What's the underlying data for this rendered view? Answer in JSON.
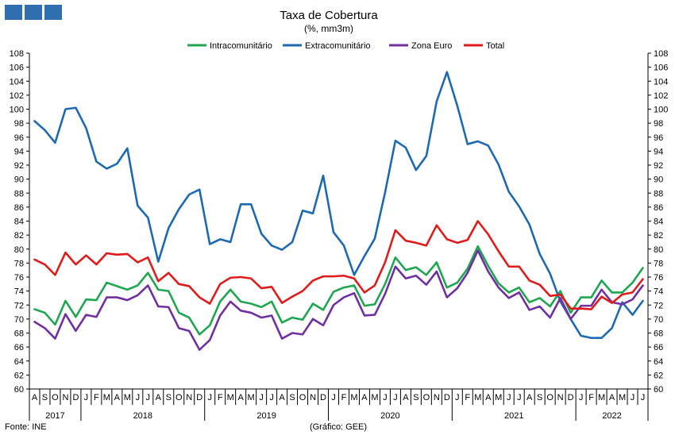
{
  "logo": {
    "color": "#2f6fb0",
    "blocks": 3
  },
  "footer": {
    "source": "Fonte: INE",
    "credit": "(Gráfico: GEE)"
  },
  "chart_data": {
    "type": "line",
    "title": "Taxa de Cobertura",
    "subtitle": "(%, mm3m)",
    "xlabel": "",
    "ylabel": "",
    "ylim": [
      60,
      108
    ],
    "ytick_step": 2,
    "grid": false,
    "legend_position": "top-center",
    "dual_y_axis": true,
    "months": [
      "A",
      "S",
      "O",
      "N",
      "D",
      "J",
      "F",
      "M",
      "A",
      "M",
      "J",
      "J",
      "A",
      "S",
      "O",
      "N",
      "D",
      "J",
      "F",
      "M",
      "A",
      "M",
      "J",
      "J",
      "A",
      "S",
      "O",
      "N",
      "D",
      "J",
      "F",
      "M",
      "A",
      "M",
      "J",
      "J",
      "A",
      "S",
      "O",
      "N",
      "D",
      "J",
      "F",
      "M",
      "A",
      "M",
      "J",
      "J",
      "A",
      "S",
      "O",
      "N",
      "D",
      "J",
      "F",
      "M",
      "A",
      "M",
      "J",
      "J"
    ],
    "year_labels": [
      {
        "label": "2017",
        "start": 0,
        "end": 4
      },
      {
        "label": "2018",
        "start": 5,
        "end": 16
      },
      {
        "label": "2019",
        "start": 17,
        "end": 28
      },
      {
        "label": "2020",
        "start": 29,
        "end": 40
      },
      {
        "label": "2021",
        "start": 41,
        "end": 52
      },
      {
        "label": "2022",
        "start": 53,
        "end": 59
      }
    ],
    "series": [
      {
        "name": "Intracomunitário",
        "color": "#1fa651",
        "values": [
          71.4,
          70.9,
          69.2,
          72.6,
          70.3,
          72.8,
          72.7,
          75.2,
          74.7,
          74.2,
          74.8,
          76.6,
          74.2,
          74.0,
          70.9,
          70.2,
          67.8,
          69.1,
          72.5,
          74.2,
          72.5,
          72.2,
          71.7,
          72.5,
          69.5,
          70.2,
          69.9,
          72.2,
          71.3,
          73.9,
          74.5,
          74.8,
          71.9,
          72.1,
          75.0,
          78.8,
          77.0,
          77.4,
          76.3,
          78.1,
          74.5,
          75.2,
          77.2,
          80.4,
          77.6,
          75.1,
          73.8,
          74.5,
          72.4,
          73.0,
          71.8,
          74.0,
          70.9,
          73.1,
          73.1,
          75.5,
          73.8,
          73.8,
          75.2,
          77.3
        ]
      },
      {
        "name": "Extracomunitário",
        "color": "#1e6ab0",
        "values": [
          98.3,
          97.0,
          95.2,
          100.0,
          100.2,
          97.3,
          92.5,
          91.5,
          92.2,
          94.4,
          86.2,
          84.5,
          78.2,
          83.0,
          85.7,
          87.8,
          88.5,
          80.7,
          81.4,
          81.0,
          86.4,
          86.4,
          82.2,
          80.5,
          79.9,
          81.0,
          85.5,
          85.1,
          90.5,
          82.4,
          80.5,
          76.3,
          79.0,
          81.5,
          88.1,
          95.5,
          94.5,
          91.3,
          93.3,
          101.1,
          105.3,
          100.5,
          95.0,
          95.4,
          94.8,
          92.1,
          88.2,
          86.1,
          83.5,
          79.3,
          76.5,
          72.5,
          70.0,
          67.6,
          67.3,
          67.3,
          68.7,
          72.4,
          70.6,
          72.6
        ]
      },
      {
        "name": "Zona Euro",
        "color": "#7030a0",
        "values": [
          69.6,
          68.7,
          67.2,
          70.7,
          68.3,
          70.6,
          70.3,
          73.1,
          73.1,
          72.7,
          73.4,
          74.8,
          71.8,
          71.7,
          68.7,
          68.3,
          65.6,
          67.0,
          70.5,
          72.5,
          71.2,
          70.9,
          70.2,
          70.5,
          67.2,
          68.0,
          67.8,
          70.0,
          69.1,
          72.0,
          73.1,
          73.7,
          70.5,
          70.6,
          73.6,
          77.5,
          75.8,
          76.2,
          74.9,
          76.8,
          73.1,
          74.4,
          76.6,
          79.8,
          76.8,
          74.5,
          73.0,
          73.8,
          71.3,
          71.8,
          70.2,
          73.0,
          70.0,
          71.9,
          71.9,
          74.2,
          72.4,
          72.1,
          72.8,
          74.8
        ]
      },
      {
        "name": "Total",
        "color": "#e01b1b",
        "values": [
          78.5,
          77.8,
          76.3,
          79.5,
          77.8,
          79.1,
          77.8,
          79.4,
          79.2,
          79.3,
          78.1,
          78.8,
          75.4,
          76.6,
          75.0,
          74.7,
          73.1,
          72.2,
          75.0,
          75.9,
          76.0,
          75.8,
          74.4,
          74.6,
          72.3,
          73.2,
          74.0,
          75.5,
          76.1,
          76.1,
          76.2,
          75.8,
          73.8,
          74.8,
          78.1,
          82.7,
          81.2,
          80.9,
          80.5,
          83.4,
          81.4,
          80.9,
          81.3,
          84.0,
          82.1,
          79.7,
          77.5,
          77.5,
          75.5,
          74.9,
          73.3,
          73.5,
          71.5,
          71.5,
          71.4,
          73.2,
          72.3,
          73.5,
          73.8,
          75.7
        ]
      }
    ]
  }
}
